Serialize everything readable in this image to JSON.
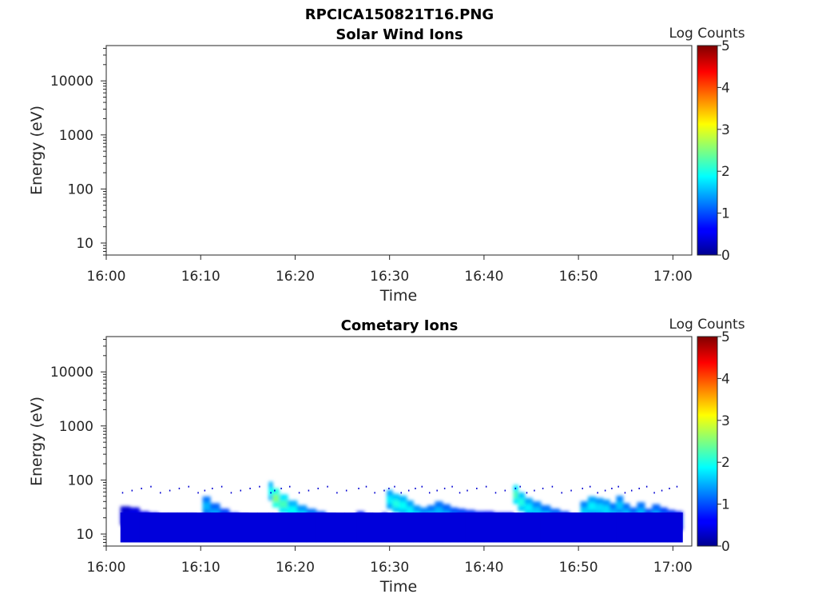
{
  "figure_title": "RPCICA150821T16.PNG",
  "chart_data": [
    {
      "type": "heatmap",
      "title": "Solar Wind Ions",
      "xlabel": "Time",
      "ylabel": "Energy (eV)",
      "x_ticks": [
        "16:00",
        "16:10",
        "16:20",
        "16:30",
        "16:40",
        "16:50",
        "17:00"
      ],
      "xlim": [
        "16:00",
        "17:02"
      ],
      "y_scale": "log",
      "y_ticks": [
        10,
        100,
        1000,
        10000
      ],
      "y_tick_labels": [
        "10",
        "100",
        "1000",
        "10000"
      ],
      "ylim": [
        6,
        45000
      ],
      "colorbar": {
        "label": "Log Counts",
        "ticks": [
          "0",
          "1",
          "2",
          "3",
          "4",
          "5"
        ],
        "range": [
          0,
          5
        ],
        "colormap": "jet"
      },
      "grid": false,
      "data": []
    },
    {
      "type": "heatmap",
      "title": "Cometary Ions",
      "xlabel": "Time",
      "ylabel": "Energy (eV)",
      "x_ticks": [
        "16:00",
        "16:10",
        "16:20",
        "16:30",
        "16:40",
        "16:50",
        "17:00"
      ],
      "xlim": [
        "16:00",
        "17:02"
      ],
      "y_scale": "log",
      "y_ticks": [
        10,
        100,
        1000,
        10000
      ],
      "y_tick_labels": [
        "10",
        "100",
        "1000",
        "10000"
      ],
      "ylim": [
        6,
        45000
      ],
      "colorbar": {
        "label": "Log Counts",
        "ticks": [
          "0",
          "1",
          "2",
          "3",
          "4",
          "5"
        ],
        "range": [
          0,
          5
        ],
        "colormap": "jet"
      },
      "grid": false,
      "data_columns": [
        "time_min",
        "energy_eV",
        "log_counts"
      ],
      "data": [
        [
          1.5,
          21,
          0.5
        ],
        [
          2.5,
          20,
          0.6
        ],
        [
          3.5,
          17,
          0.7
        ],
        [
          4.5,
          16,
          0.8
        ],
        [
          5.5,
          15,
          0.9
        ],
        [
          6.5,
          15,
          0.8
        ],
        [
          7.5,
          15,
          0.7
        ],
        [
          8.5,
          15,
          0.6
        ],
        [
          9.5,
          14,
          0.5
        ],
        [
          10.2,
          32,
          1.5
        ],
        [
          11,
          24,
          1.4
        ],
        [
          12,
          19,
          1.2
        ],
        [
          13,
          16,
          1.0
        ],
        [
          14,
          15,
          0.9
        ],
        [
          15,
          14,
          0.8
        ],
        [
          16,
          14,
          0.7
        ],
        [
          17.2,
          60,
          1.9
        ],
        [
          17.6,
          45,
          2.5
        ],
        [
          18.3,
          35,
          2.2
        ],
        [
          19.2,
          27,
          1.9
        ],
        [
          20.2,
          22,
          1.7
        ],
        [
          21.2,
          19,
          1.5
        ],
        [
          22.2,
          17,
          1.3
        ],
        [
          23.2,
          15,
          1.2
        ],
        [
          24.2,
          14,
          1.0
        ],
        [
          25.2,
          14,
          0.9
        ],
        [
          26.5,
          17,
          1.0
        ],
        [
          27.3,
          15,
          0.9
        ],
        [
          28.2,
          14,
          0.8
        ],
        [
          29.2,
          16,
          1.0
        ],
        [
          29.7,
          42,
          1.8
        ],
        [
          30.3,
          36,
          2.0
        ],
        [
          31,
          33,
          1.9
        ],
        [
          31.8,
          27,
          1.8
        ],
        [
          32.5,
          22,
          1.7
        ],
        [
          33.2,
          20,
          1.6
        ],
        [
          34,
          22,
          1.5
        ],
        [
          34.8,
          26,
          1.5
        ],
        [
          35.6,
          23,
          1.4
        ],
        [
          36.4,
          20,
          1.3
        ],
        [
          37.2,
          19,
          1.2
        ],
        [
          38,
          18,
          1.1
        ],
        [
          39,
          17,
          1.0
        ],
        [
          40,
          17,
          0.9
        ],
        [
          41,
          16,
          0.9
        ],
        [
          42,
          16,
          0.9
        ],
        [
          43.1,
          52,
          2.2
        ],
        [
          43.6,
          38,
          2.0
        ],
        [
          44.3,
          30,
          1.8
        ],
        [
          45.1,
          26,
          1.6
        ],
        [
          46,
          22,
          1.5
        ],
        [
          47,
          19,
          1.4
        ],
        [
          48,
          17,
          1.2
        ],
        [
          49,
          15,
          1.0
        ],
        [
          50.2,
          26,
          1.6
        ],
        [
          51,
          32,
          1.8
        ],
        [
          51.8,
          30,
          1.7
        ],
        [
          52.6,
          28,
          1.7
        ],
        [
          53.3,
          24,
          1.5
        ],
        [
          54,
          33,
          1.6
        ],
        [
          54.7,
          24,
          1.5
        ],
        [
          55.4,
          20,
          1.4
        ],
        [
          56.2,
          25,
          1.5
        ],
        [
          57,
          19,
          1.3
        ],
        [
          57.8,
          23,
          1.4
        ],
        [
          58.6,
          20,
          1.2
        ],
        [
          59.4,
          18,
          1.1
        ],
        [
          60.2,
          17,
          1.0
        ]
      ]
    }
  ]
}
